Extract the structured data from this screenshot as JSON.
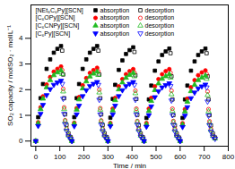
{
  "chart_data": {
    "type": "scatter",
    "x_label": "Time / min",
    "y_label": "SO₂ capacity / molSO₂ · molIL⁻¹",
    "xlim": [
      -20,
      800
    ],
    "xticks": [
      0,
      100,
      200,
      300,
      400,
      500,
      600,
      700,
      800
    ],
    "ylim": [
      -0.2,
      5.3
    ],
    "yticks": [
      0,
      1,
      2,
      3,
      4
    ],
    "grid": false,
    "legend": "top-left",
    "series": [
      {
        "name": "absorption",
        "group": "[NEt₃C₆Py][SCN]",
        "color": "#000000",
        "marker": "square",
        "x": [
          0,
          10,
          20,
          30,
          45,
          60,
          75,
          90,
          105,
          150,
          160,
          170,
          180,
          195,
          210,
          225,
          240,
          255,
          300,
          310,
          320,
          330,
          345,
          360,
          375,
          390,
          405,
          450,
          460,
          470,
          480,
          495,
          510,
          525,
          540,
          555,
          600,
          610,
          620,
          630,
          645,
          660,
          675,
          690,
          705
        ],
        "values": [
          0,
          0.93,
          1.67,
          2.22,
          2.81,
          3.18,
          3.44,
          3.59,
          3.7,
          0,
          0.93,
          1.67,
          2.22,
          2.81,
          3.18,
          3.44,
          3.59,
          3.7,
          0,
          0.91,
          1.64,
          2.19,
          2.77,
          3.14,
          3.39,
          3.54,
          3.65,
          0,
          0.9,
          1.62,
          2.16,
          2.74,
          3.1,
          3.35,
          3.49,
          3.6,
          0,
          0.9,
          1.62,
          2.16,
          2.74,
          3.1,
          3.35,
          3.49,
          3.6
        ]
      },
      {
        "name": "desorption",
        "group": "[NEt₃C₆Py][SCN]",
        "color": "#000000",
        "marker": "square-open",
        "x": [
          110,
          114,
          118,
          122,
          128,
          136,
          145,
          260,
          264,
          268,
          272,
          278,
          286,
          295,
          410,
          414,
          418,
          422,
          428,
          436,
          445,
          560,
          564,
          568,
          572,
          578,
          586,
          595,
          710,
          714,
          718,
          722,
          728,
          736,
          745
        ],
        "values": [
          3.52,
          2.59,
          1.67,
          1.04,
          0.63,
          0.3,
          0.15,
          3.52,
          2.59,
          1.67,
          1.04,
          0.63,
          0.3,
          0.15,
          3.47,
          2.56,
          1.64,
          1.02,
          0.62,
          0.29,
          0.15,
          3.42,
          2.52,
          1.62,
          1.01,
          0.61,
          0.29,
          0.14,
          3.42,
          2.52,
          1.62,
          1.01,
          0.61,
          0.29,
          0.14
        ]
      },
      {
        "name": "absorption",
        "group": "[C₆OPy][SCN]",
        "color": "#ff0000",
        "marker": "circle",
        "x": [
          0,
          10,
          20,
          30,
          45,
          60,
          75,
          90,
          105,
          150,
          160,
          170,
          180,
          195,
          210,
          225,
          240,
          255,
          300,
          310,
          320,
          330,
          345,
          360,
          375,
          390,
          405,
          450,
          460,
          470,
          480,
          495,
          510,
          525,
          540,
          555,
          600,
          610,
          620,
          630,
          645,
          660,
          675,
          690,
          705
        ],
        "values": [
          0,
          0.73,
          1.31,
          1.74,
          2.2,
          2.49,
          2.7,
          2.81,
          2.9,
          0,
          0.71,
          1.28,
          1.71,
          2.17,
          2.45,
          2.65,
          2.76,
          2.85,
          0,
          0.7,
          1.26,
          1.68,
          2.13,
          2.41,
          2.6,
          2.72,
          2.8,
          0,
          0.7,
          1.26,
          1.68,
          2.13,
          2.41,
          2.6,
          2.72,
          2.8,
          0,
          0.69,
          1.24,
          1.65,
          2.09,
          2.37,
          2.56,
          2.67,
          2.75
        ]
      },
      {
        "name": "desorption",
        "group": "[C₆OPy][SCN]",
        "color": "#ff0000",
        "marker": "circle-open",
        "x": [
          110,
          114,
          118,
          122,
          128,
          136,
          145,
          260,
          264,
          268,
          272,
          278,
          286,
          295,
          410,
          414,
          418,
          422,
          428,
          436,
          445,
          560,
          564,
          568,
          572,
          578,
          586,
          595,
          710,
          714,
          718,
          722,
          728,
          736,
          745
        ],
        "values": [
          2.76,
          2.03,
          1.31,
          0.81,
          0.49,
          0.23,
          0.12,
          2.71,
          2.0,
          1.28,
          0.8,
          0.48,
          0.23,
          0.11,
          2.66,
          1.96,
          1.26,
          0.78,
          0.48,
          0.22,
          0.11,
          2.66,
          1.96,
          1.26,
          0.78,
          0.48,
          0.22,
          0.11,
          2.61,
          1.93,
          1.24,
          0.77,
          0.47,
          0.22,
          0.11
        ]
      },
      {
        "name": "absorption",
        "group": "[C₆CNPy][SCN]",
        "color": "#22bb22",
        "marker": "triangle",
        "x": [
          0,
          10,
          20,
          30,
          45,
          60,
          75,
          90,
          105,
          150,
          160,
          170,
          180,
          195,
          210,
          225,
          240,
          255,
          300,
          310,
          320,
          330,
          345,
          360,
          375,
          390,
          405,
          450,
          460,
          470,
          480,
          495,
          510,
          525,
          540,
          555,
          600,
          610,
          620,
          630,
          645,
          660,
          675,
          690,
          705
        ],
        "values": [
          0,
          0.69,
          1.24,
          1.65,
          2.09,
          2.37,
          2.56,
          2.67,
          2.75,
          0,
          0.68,
          1.22,
          1.62,
          2.05,
          2.32,
          2.51,
          2.62,
          2.7,
          0,
          0.66,
          1.19,
          1.59,
          2.01,
          2.28,
          2.46,
          2.57,
          2.65,
          0,
          0.65,
          1.17,
          1.56,
          1.98,
          2.24,
          2.42,
          2.52,
          2.6,
          0,
          0.64,
          1.15,
          1.53,
          1.94,
          2.19,
          2.37,
          2.47,
          2.55
        ]
      },
      {
        "name": "desorption",
        "group": "[C₆CNPy][SCN]",
        "color": "#22bb22",
        "marker": "triangle-open",
        "x": [
          110,
          114,
          118,
          122,
          128,
          136,
          145,
          260,
          264,
          268,
          272,
          278,
          286,
          295,
          410,
          414,
          418,
          422,
          428,
          436,
          445,
          560,
          564,
          568,
          572,
          578,
          586,
          595,
          710,
          714,
          718,
          722,
          728,
          736,
          745
        ],
        "values": [
          2.61,
          1.93,
          1.24,
          0.77,
          0.47,
          0.22,
          0.11,
          2.57,
          1.89,
          1.22,
          0.76,
          0.46,
          0.22,
          0.11,
          2.52,
          1.86,
          1.19,
          0.74,
          0.45,
          0.21,
          0.11,
          2.47,
          1.82,
          1.17,
          0.73,
          0.44,
          0.21,
          0.1,
          2.42,
          1.79,
          1.15,
          0.71,
          0.43,
          0.2,
          0.1
        ]
      },
      {
        "name": "absorption",
        "group": "[C₆Py][SCN]",
        "color": "#0000ff",
        "marker": "triangle-down",
        "x": [
          0,
          10,
          20,
          30,
          45,
          60,
          75,
          90,
          105,
          150,
          160,
          170,
          180,
          195,
          210,
          225,
          240,
          255,
          300,
          310,
          320,
          330,
          345,
          360,
          375,
          390,
          405,
          450,
          460,
          470,
          480,
          495,
          510,
          525,
          540,
          555,
          600,
          610,
          620,
          630,
          645,
          660,
          675,
          690,
          705
        ],
        "values": [
          0,
          0.59,
          1.06,
          1.41,
          1.79,
          2.02,
          2.19,
          2.28,
          2.35,
          0,
          0.58,
          1.04,
          1.38,
          1.75,
          1.98,
          2.14,
          2.23,
          2.3,
          0,
          0.58,
          1.04,
          1.38,
          1.75,
          1.98,
          2.14,
          2.23,
          2.3,
          0,
          0.56,
          1.01,
          1.35,
          1.71,
          1.94,
          2.09,
          2.18,
          2.25,
          0,
          0.55,
          0.99,
          1.32,
          1.67,
          1.89,
          2.05,
          2.13,
          2.2
        ]
      },
      {
        "name": "desorption",
        "group": "[C₆Py][SCN]",
        "color": "#0000ff",
        "marker": "triangle-down-open",
        "x": [
          110,
          114,
          118,
          122,
          128,
          136,
          145,
          260,
          264,
          268,
          272,
          278,
          286,
          295,
          410,
          414,
          418,
          422,
          428,
          436,
          445,
          560,
          564,
          568,
          572,
          578,
          586,
          595,
          710,
          714,
          718,
          722,
          728,
          736,
          745
        ],
        "values": [
          2.23,
          1.65,
          1.06,
          0.66,
          0.4,
          0.19,
          0.09,
          2.19,
          1.61,
          1.04,
          0.64,
          0.39,
          0.18,
          0.09,
          2.19,
          1.61,
          1.04,
          0.64,
          0.39,
          0.18,
          0.09,
          2.14,
          1.58,
          1.01,
          0.63,
          0.38,
          0.18,
          0.09,
          2.09,
          1.54,
          0.99,
          0.62,
          0.37,
          0.18,
          0.09
        ]
      }
    ]
  }
}
